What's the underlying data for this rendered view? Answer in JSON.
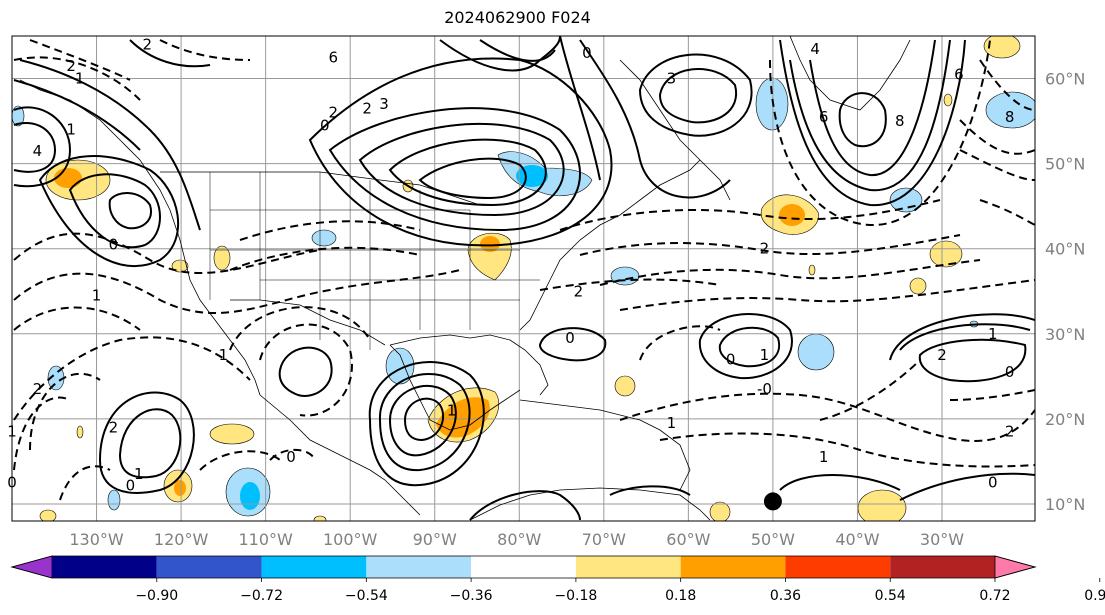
{
  "title": "2024062900 F024",
  "map": {
    "extent": {
      "lon": [
        -140,
        -19
      ],
      "lat": [
        8,
        65
      ]
    },
    "gridlines": true,
    "lon_ticks": [
      {
        "lon": -130,
        "label": "130°W"
      },
      {
        "lon": -120,
        "label": "120°W"
      },
      {
        "lon": -110,
        "label": "110°W"
      },
      {
        "lon": -100,
        "label": "100°W"
      },
      {
        "lon": -90,
        "label": "90°W"
      },
      {
        "lon": -80,
        "label": "80°W"
      },
      {
        "lon": -70,
        "label": "70°W"
      },
      {
        "lon": -60,
        "label": "60°W"
      },
      {
        "lon": -50,
        "label": "50°W"
      },
      {
        "lon": -40,
        "label": "40°W"
      },
      {
        "lon": -30,
        "label": "30°W"
      }
    ],
    "lat_ticks": [
      {
        "lat": 10,
        "label": "10°N"
      },
      {
        "lat": 20,
        "label": "20°N"
      },
      {
        "lat": 30,
        "label": "30°N"
      },
      {
        "lat": 40,
        "label": "40°N"
      },
      {
        "lat": 50,
        "label": "50°N"
      },
      {
        "lat": 60,
        "label": "60°N"
      }
    ],
    "marker": {
      "lon": -50,
      "lat": 10.3,
      "color": "#000000"
    },
    "contour_labels": [
      {
        "text": "6",
        "lon": -102,
        "lat": 62.5
      },
      {
        "text": "2",
        "lon": -102,
        "lat": 56
      },
      {
        "text": "2",
        "lon": -98,
        "lat": 56.5
      },
      {
        "text": "3",
        "lon": -96,
        "lat": 57
      },
      {
        "text": "0",
        "lon": -103,
        "lat": 54.5
      },
      {
        "text": "2",
        "lon": -133,
        "lat": 61.5
      },
      {
        "text": "1",
        "lon": -132,
        "lat": 60
      },
      {
        "text": "2",
        "lon": -124,
        "lat": 64
      },
      {
        "text": "4",
        "lon": -137,
        "lat": 51.5
      },
      {
        "text": "1",
        "lon": -133,
        "lat": 54
      },
      {
        "text": "0",
        "lon": -128,
        "lat": 40.5
      },
      {
        "text": "1",
        "lon": -130,
        "lat": 34.5
      },
      {
        "text": "0",
        "lon": -72,
        "lat": 63
      },
      {
        "text": "3",
        "lon": -62,
        "lat": 60
      },
      {
        "text": "4",
        "lon": -45,
        "lat": 63.5
      },
      {
        "text": "6",
        "lon": -44,
        "lat": 55.5
      },
      {
        "text": "8",
        "lon": -35,
        "lat": 55
      },
      {
        "text": "6",
        "lon": -28,
        "lat": 60.5
      },
      {
        "text": "8",
        "lon": -22,
        "lat": 55.5
      },
      {
        "text": "2",
        "lon": -51,
        "lat": 40
      },
      {
        "text": "2",
        "lon": -73,
        "lat": 35
      },
      {
        "text": "0",
        "lon": -74,
        "lat": 29.5
      },
      {
        "text": "1",
        "lon": -51,
        "lat": 27.5
      },
      {
        "text": "0",
        "lon": -55,
        "lat": 27
      },
      {
        "text": "-0",
        "lon": -51,
        "lat": 23.5
      },
      {
        "text": "1",
        "lon": -62,
        "lat": 19.5
      },
      {
        "text": "1",
        "lon": -44,
        "lat": 15.5
      },
      {
        "text": "2",
        "lon": -30,
        "lat": 27.5
      },
      {
        "text": "1",
        "lon": -24,
        "lat": 30
      },
      {
        "text": "0",
        "lon": -22,
        "lat": 25.5
      },
      {
        "text": "2",
        "lon": -22,
        "lat": 18.5
      },
      {
        "text": "0",
        "lon": -24,
        "lat": 12.5
      },
      {
        "text": "1",
        "lon": -115,
        "lat": 27.5
      },
      {
        "text": "1",
        "lon": -140,
        "lat": 18.5
      },
      {
        "text": "2",
        "lon": -137,
        "lat": 23.5
      },
      {
        "text": "2",
        "lon": -128,
        "lat": 19
      },
      {
        "text": "1",
        "lon": -125,
        "lat": 13.5
      },
      {
        "text": "0",
        "lon": -126,
        "lat": 12.2
      },
      {
        "text": "0",
        "lon": -140,
        "lat": 12.5
      },
      {
        "text": "0",
        "lon": -107,
        "lat": 15.5
      },
      {
        "text": "1",
        "lon": -88,
        "lat": 21
      }
    ]
  },
  "colorbar": {
    "boundaries": [
      -0.9,
      -0.72,
      -0.54,
      -0.36,
      -0.18,
      0.18,
      0.36,
      0.54,
      0.72,
      0.9
    ],
    "labels": [
      "−0.90",
      "−0.72",
      "−0.54",
      "−0.36",
      "−0.18",
      "0.18",
      "0.36",
      "0.54",
      "0.72",
      "0.90"
    ],
    "colors": [
      "#9933cc",
      "#000088",
      "#3355cc",
      "#00bfff",
      "#aadefa",
      "#ffffff",
      "#ffe680",
      "#ffa000",
      "#ff3c00",
      "#b22222",
      "#ff7aa8"
    ],
    "extend": "both"
  }
}
